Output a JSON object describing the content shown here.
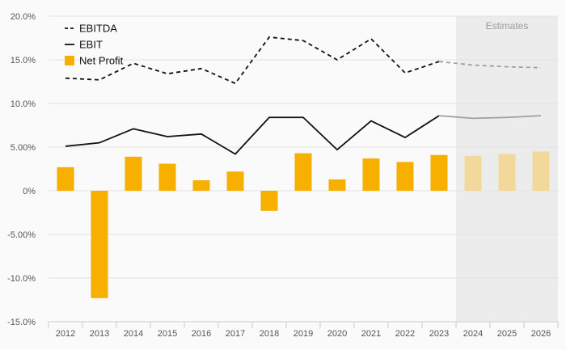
{
  "chart_data": {
    "type": "bar",
    "categories": [
      "2012",
      "2013",
      "2014",
      "2015",
      "2016",
      "2017",
      "2018",
      "2019",
      "2020",
      "2021",
      "2022",
      "2023",
      "2024",
      "2025",
      "2026"
    ],
    "estimate_from_index": 12,
    "estimates_label": "Estimates",
    "ylim": [
      -15,
      20
    ],
    "yticks": [
      {
        "value": 20,
        "label": "20.0%"
      },
      {
        "value": 15,
        "label": "15.0%"
      },
      {
        "value": 10,
        "label": "10.0%"
      },
      {
        "value": 5,
        "label": "5.00%"
      },
      {
        "value": 0,
        "label": "0%"
      },
      {
        "value": -5,
        "label": "-5.00%"
      },
      {
        "value": -10,
        "label": "-10.0%"
      },
      {
        "value": -15,
        "label": "-15.0%"
      }
    ],
    "grid": true,
    "legend_position": "top-left",
    "series": [
      {
        "name": "EBITDA",
        "kind": "line",
        "style": "dashed",
        "color": "#111111",
        "estimate_color": "#a0a0a0",
        "values": [
          12.9,
          12.7,
          14.6,
          13.4,
          14.0,
          12.3,
          17.6,
          17.2,
          15.0,
          17.4,
          13.5,
          14.8,
          14.4,
          14.2,
          14.1
        ]
      },
      {
        "name": "EBIT",
        "kind": "line",
        "style": "solid",
        "color": "#111111",
        "estimate_color": "#a0a0a0",
        "values": [
          5.1,
          5.5,
          7.1,
          6.2,
          6.5,
          4.2,
          8.4,
          8.4,
          4.7,
          8.0,
          6.1,
          8.6,
          8.3,
          8.4,
          8.6
        ]
      },
      {
        "name": "Net Profit",
        "kind": "bar",
        "color": "#f7b000",
        "estimate_color": "#f3d89b",
        "values": [
          2.7,
          -12.3,
          3.9,
          3.1,
          1.2,
          2.2,
          -2.3,
          4.3,
          1.3,
          3.7,
          3.3,
          4.1,
          4.0,
          4.2,
          4.5
        ]
      }
    ]
  }
}
